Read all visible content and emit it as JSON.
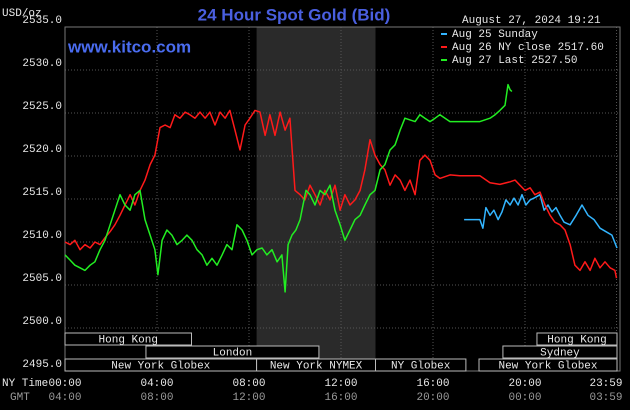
{
  "chart_data": {
    "type": "line",
    "title": "24 Hour Spot Gold (Bid)",
    "watermark": "www.kitco.com",
    "timestamp": "August 27, 2024 19:21",
    "ylabel": "USD/oz",
    "xlabel": "NY Time",
    "x2label": "GMT",
    "xlim": [
      0,
      24
    ],
    "xticks": [
      {
        "value": 0,
        "label": "00:00"
      },
      {
        "value": 4,
        "label": "04:00"
      },
      {
        "value": 8,
        "label": "08:00"
      },
      {
        "value": 12,
        "label": "12:00"
      },
      {
        "value": 16,
        "label": "16:00"
      },
      {
        "value": 20,
        "label": "20:00"
      },
      {
        "value": 23.98,
        "label": "23:59"
      }
    ],
    "gmt_labels": [
      "04:00",
      "08:00",
      "12:00",
      "16:00",
      "20:00",
      "00:00",
      "03:59"
    ],
    "ylim": [
      2495,
      2535
    ],
    "yticks": [
      {
        "value": 2495,
        "label": "2495.0"
      },
      {
        "value": 2500,
        "label": "2500.0"
      },
      {
        "value": 2505,
        "label": "2505.0"
      },
      {
        "value": 2510,
        "label": "2510.0"
      },
      {
        "value": 2515,
        "label": "2515.0"
      },
      {
        "value": 2520,
        "label": "2520.0"
      },
      {
        "value": 2525,
        "label": "2525.0"
      },
      {
        "value": 2530,
        "label": "2530.0"
      },
      {
        "value": 2535,
        "label": "2535.0"
      }
    ],
    "grid": true,
    "highlight": [
      8.33,
      13.5
    ],
    "sessions": [
      [
        {
          "label": "Hong Kong",
          "start": 0,
          "end": 5.5
        },
        {
          "label": "Hong Kong",
          "start": 20.52,
          "end": 24
        }
      ],
      [
        {
          "label": "London",
          "start": 3.52,
          "end": 11.04
        },
        {
          "label": "Sydney",
          "start": 19.04,
          "end": 24
        }
      ],
      [
        {
          "label": "New York Globex",
          "start": 0,
          "end": 8.33
        },
        {
          "label": "New York NYMEX",
          "start": 8.33,
          "end": 13.5
        },
        {
          "label": "NY Globex",
          "start": 13.5,
          "end": 17.43
        },
        {
          "label": "New York Globex",
          "start": 18.0,
          "end": 24
        }
      ]
    ],
    "series": [
      {
        "name": "Aug 25 Sunday",
        "color": "#33b5ff",
        "x": [
          17.35,
          18.04,
          18.17,
          18.3,
          18.48,
          18.65,
          18.83,
          19.0,
          19.17,
          19.35,
          19.52,
          19.7,
          19.87,
          20.04,
          20.22,
          20.39,
          20.65,
          20.83,
          21.0,
          21.17,
          21.35,
          21.52,
          21.7,
          21.96,
          22.22,
          22.48,
          22.74,
          23.0,
          23.26,
          23.52,
          23.78,
          24.0
        ],
        "values": [
          2512.6,
          2512.6,
          2511.6,
          2514.0,
          2513.1,
          2513.7,
          2512.6,
          2513.5,
          2514.9,
          2514.3,
          2515.1,
          2514.3,
          2515.5,
          2514.3,
          2514.9,
          2515.1,
          2515.5,
          2513.7,
          2514.3,
          2513.5,
          2514.0,
          2513.1,
          2512.3,
          2512.0,
          2513.1,
          2514.3,
          2513.1,
          2512.6,
          2511.6,
          2511.2,
          2510.8,
          2509.3
        ]
      },
      {
        "name": "Aug 26 NY close 2517.60",
        "color": "#ff1a1a",
        "x": [
          0,
          0.22,
          0.43,
          0.65,
          0.87,
          1.09,
          1.3,
          1.52,
          1.74,
          1.96,
          2.17,
          2.39,
          2.61,
          2.83,
          3.04,
          3.26,
          3.48,
          3.7,
          3.91,
          4.13,
          4.35,
          4.57,
          4.78,
          5.0,
          5.22,
          5.43,
          5.65,
          5.87,
          6.09,
          6.3,
          6.52,
          6.74,
          6.96,
          7.17,
          7.39,
          7.61,
          7.83,
          8.04,
          8.26,
          8.48,
          8.7,
          8.91,
          9.13,
          9.35,
          9.57,
          9.78,
          10.0,
          10.22,
          10.43,
          10.65,
          10.87,
          11.09,
          11.3,
          11.52,
          11.74,
          11.96,
          12.17,
          12.39,
          12.61,
          12.83,
          13.04,
          13.26,
          13.48,
          13.7,
          13.91,
          14.13,
          14.35,
          14.57,
          14.78,
          15.0,
          15.22,
          15.43,
          15.65,
          15.87,
          16.09,
          16.3,
          16.74,
          17.17,
          17.61,
          18.04,
          18.48,
          18.91,
          19.35,
          19.57,
          19.78,
          20.0,
          20.22,
          20.43,
          20.65,
          20.87,
          21.09,
          21.3,
          21.52,
          21.74,
          21.96,
          22.17,
          22.39,
          22.61,
          22.83,
          23.04,
          23.26,
          23.48,
          23.7,
          23.91,
          23.98
        ],
        "values": [
          2510.0,
          2509.7,
          2510.2,
          2509.1,
          2509.7,
          2509.3,
          2510.0,
          2509.7,
          2510.5,
          2511.2,
          2512.0,
          2513.1,
          2514.3,
          2515.5,
          2514.3,
          2516.0,
          2517.2,
          2519.0,
          2520.1,
          2523.3,
          2523.6,
          2523.3,
          2524.8,
          2524.4,
          2525.1,
          2524.8,
          2524.4,
          2525.1,
          2524.4,
          2525.1,
          2523.6,
          2525.1,
          2524.4,
          2525.3,
          2523.0,
          2520.7,
          2523.6,
          2524.4,
          2525.3,
          2525.1,
          2522.4,
          2524.8,
          2522.4,
          2525.1,
          2523.0,
          2524.4,
          2516.0,
          2515.5,
          2514.9,
          2516.6,
          2515.5,
          2514.3,
          2516.0,
          2514.9,
          2516.6,
          2513.7,
          2515.5,
          2514.3,
          2514.9,
          2516.0,
          2518.4,
          2521.9,
          2520.1,
          2519.0,
          2518.4,
          2516.6,
          2517.8,
          2517.2,
          2516.0,
          2517.2,
          2515.5,
          2519.5,
          2520.1,
          2519.5,
          2517.8,
          2517.4,
          2517.8,
          2517.7,
          2517.7,
          2517.7,
          2516.9,
          2516.7,
          2517.0,
          2517.2,
          2516.6,
          2516.0,
          2516.3,
          2515.5,
          2515.8,
          2514.3,
          2513.1,
          2512.3,
          2512.0,
          2511.4,
          2509.7,
          2507.3,
          2506.7,
          2507.7,
          2506.7,
          2508.1,
          2507.0,
          2507.7,
          2507.0,
          2506.7,
          2505.8
        ]
      },
      {
        "name": "Aug 27 Last 2527.50",
        "color": "#22ee22",
        "x": [
          0,
          0.22,
          0.43,
          0.65,
          0.87,
          1.09,
          1.3,
          1.52,
          1.74,
          1.96,
          2.17,
          2.39,
          2.61,
          2.83,
          3.04,
          3.26,
          3.48,
          3.7,
          3.91,
          4.04,
          4.22,
          4.43,
          4.65,
          4.87,
          5.09,
          5.3,
          5.52,
          5.74,
          5.96,
          6.17,
          6.39,
          6.61,
          6.83,
          7.04,
          7.26,
          7.48,
          7.7,
          7.91,
          8.13,
          8.35,
          8.57,
          8.78,
          9.0,
          9.22,
          9.43,
          9.57,
          9.7,
          9.87,
          10.04,
          10.22,
          10.35,
          10.48,
          10.65,
          10.87,
          11.09,
          11.3,
          11.52,
          11.74,
          11.96,
          12.17,
          12.39,
          12.61,
          12.83,
          13.04,
          13.26,
          13.48,
          13.7,
          13.91,
          14.13,
          14.35,
          14.57,
          14.78,
          15.0,
          15.22,
          15.43,
          15.65,
          15.87,
          16.09,
          16.3,
          16.74,
          17.17,
          17.61,
          18.04,
          18.48,
          18.7,
          18.91,
          19.13,
          19.26,
          19.35,
          19.43
        ],
        "values": [
          2508.5,
          2507.9,
          2507.3,
          2507.0,
          2506.7,
          2507.3,
          2507.7,
          2509.1,
          2510.2,
          2512.0,
          2513.7,
          2515.5,
          2514.3,
          2513.7,
          2515.5,
          2516.0,
          2512.6,
          2510.8,
          2509.1,
          2506.2,
          2510.2,
          2511.4,
          2510.8,
          2509.7,
          2510.2,
          2510.8,
          2510.2,
          2509.1,
          2508.5,
          2507.3,
          2508.1,
          2507.3,
          2508.5,
          2509.7,
          2509.1,
          2512.0,
          2511.4,
          2510.2,
          2508.5,
          2509.1,
          2509.3,
          2508.5,
          2509.1,
          2507.7,
          2508.5,
          2504.2,
          2509.7,
          2510.8,
          2511.4,
          2512.6,
          2514.3,
          2516.0,
          2515.5,
          2514.3,
          2516.0,
          2515.5,
          2516.6,
          2513.7,
          2512.0,
          2510.2,
          2511.4,
          2512.6,
          2513.1,
          2514.3,
          2515.5,
          2516.0,
          2518.4,
          2519.0,
          2520.7,
          2521.3,
          2523.0,
          2524.4,
          2524.2,
          2524.0,
          2524.8,
          2524.4,
          2524.0,
          2524.4,
          2524.8,
          2524.0,
          2524.0,
          2524.0,
          2524.0,
          2524.4,
          2524.8,
          2525.3,
          2525.9,
          2528.3,
          2527.7,
          2527.5
        ]
      }
    ]
  }
}
